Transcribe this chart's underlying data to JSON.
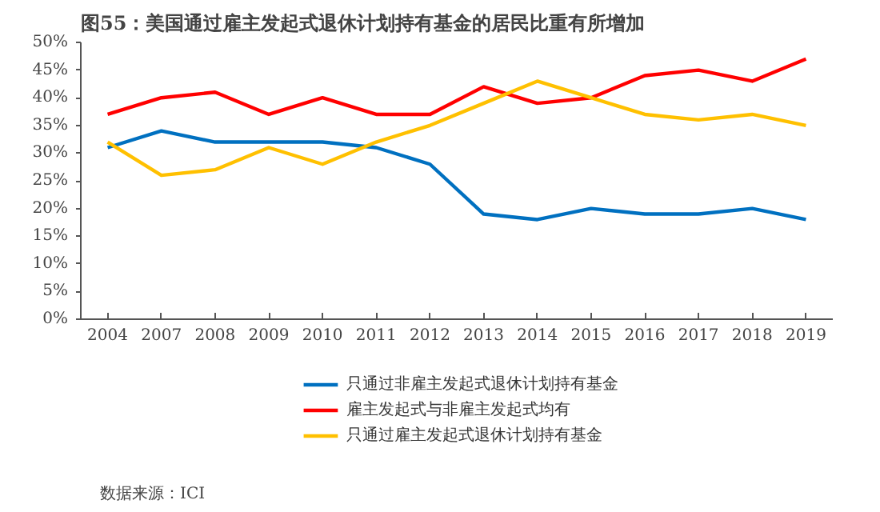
{
  "chart_data": {
    "type": "line",
    "title": "图55：美国通过雇主发起式退休计划持有基金的居民比重有所增加",
    "categories": [
      "2004",
      "2007",
      "2008",
      "2009",
      "2010",
      "2011",
      "2012",
      "2013",
      "2014",
      "2015",
      "2016",
      "2017",
      "2018",
      "2019"
    ],
    "series": [
      {
        "name": "只通过非雇主发起式退休计划持有基金",
        "color": "#0070c0",
        "values": [
          31,
          34,
          32,
          32,
          32,
          31,
          28,
          19,
          18,
          20,
          19,
          19,
          20,
          18
        ]
      },
      {
        "name": "雇主发起式与非雇主发起式均有",
        "color": "#ff0000",
        "values": [
          37,
          40,
          41,
          37,
          40,
          37,
          37,
          42,
          39,
          40,
          44,
          45,
          43,
          47
        ]
      },
      {
        "name": "只通过雇主发起式退休计划持有基金",
        "color": "#ffc000",
        "values": [
          32,
          26,
          27,
          31,
          28,
          32,
          35,
          39,
          43,
          40,
          37,
          36,
          37,
          35
        ]
      }
    ],
    "ylim": [
      0,
      50
    ],
    "yticks": [
      {
        "value": 0,
        "label": "0%"
      },
      {
        "value": 5,
        "label": "5%"
      },
      {
        "value": 10,
        "label": "10%"
      },
      {
        "value": 15,
        "label": "15%"
      },
      {
        "value": 20,
        "label": "20%"
      },
      {
        "value": 25,
        "label": "25%"
      },
      {
        "value": 30,
        "label": "30%"
      },
      {
        "value": 35,
        "label": "35%"
      },
      {
        "value": 40,
        "label": "40%"
      },
      {
        "value": 45,
        "label": "45%"
      },
      {
        "value": 50,
        "label": "50%"
      }
    ],
    "grid": false,
    "legend": "bottom",
    "marker": "none",
    "line_style": "solid",
    "annotations": [
      "数据来源：ICI"
    ]
  }
}
